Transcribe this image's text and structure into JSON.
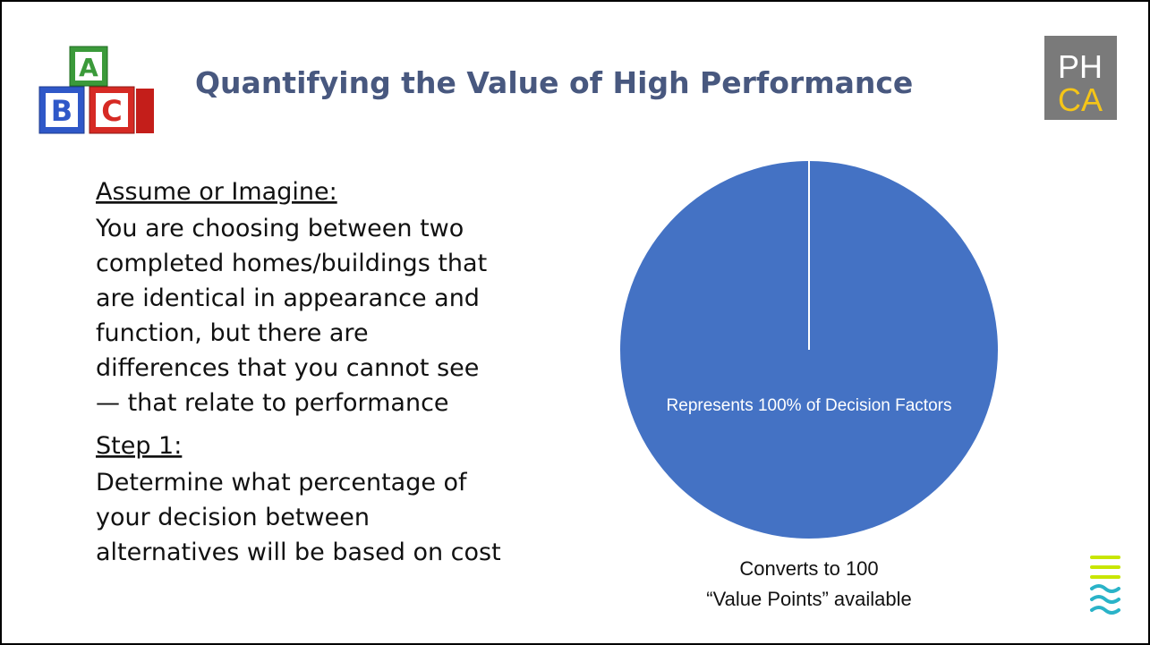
{
  "header": {
    "title": "Quantifying the Value of High Performance",
    "logo_blocks": [
      "A",
      "B",
      "C"
    ],
    "brand": {
      "line1": "PH",
      "line2": "CA"
    }
  },
  "body": {
    "heading1": "Assume or Imagine:",
    "paragraph1": [
      "You are choosing between two",
      "completed homes/buildings that",
      "are identical in appearance and",
      "function, but there are",
      "differences that you cannot see",
      "— that relate to performance"
    ],
    "heading2": "Step 1:",
    "paragraph2": [
      "Determine what percentage of",
      "your decision between",
      "alternatives will be based on cost"
    ]
  },
  "chart_data": {
    "type": "pie",
    "values": [
      100
    ],
    "value_labels": [
      "Represents 100% of Decision Factors"
    ],
    "color": "#4472c4",
    "caption": [
      "Converts to 100",
      "“Value Points” available"
    ]
  }
}
